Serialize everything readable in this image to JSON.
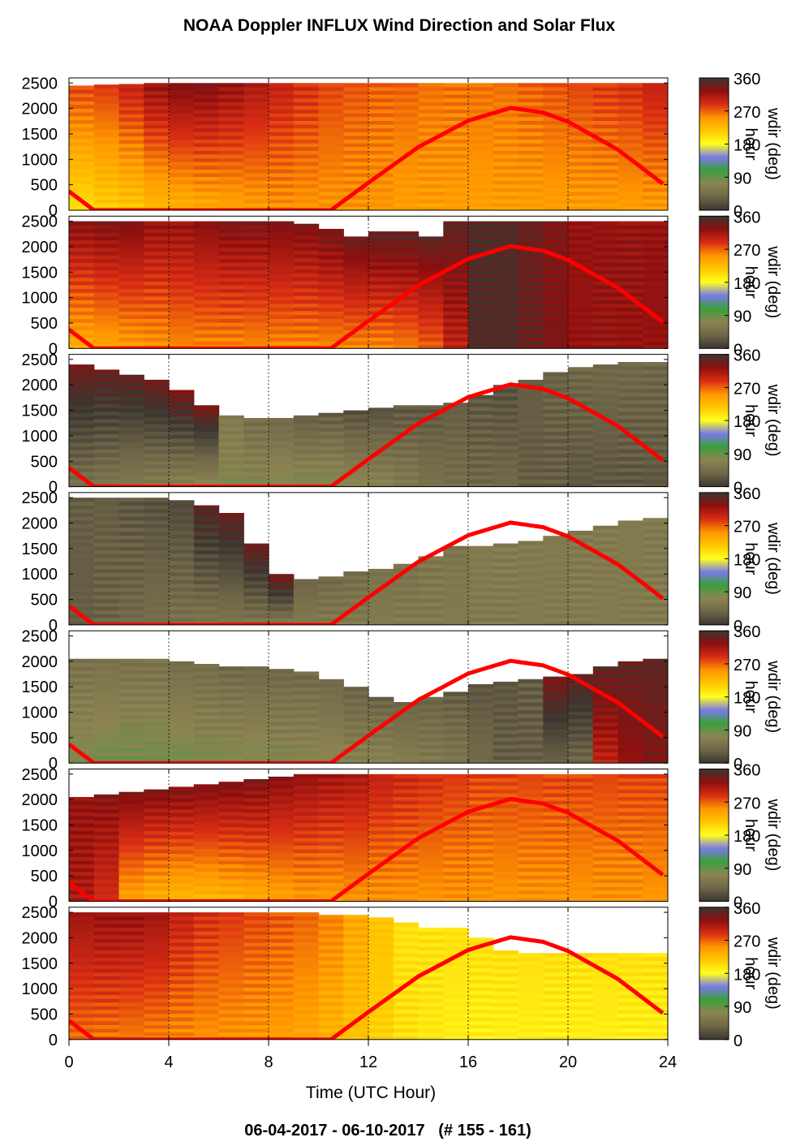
{
  "title": "NOAA Doppler INFLUX Wind Direction and Solar Flux",
  "footer": "06-04-2017 - 06-10-2017   (# 155 - 161)",
  "colors": {
    "solar_curve": "#ff0000",
    "colormap": [
      "#3b3630",
      "#6e6648",
      "#8c8452",
      "#3aa03a",
      "#7a7ae8",
      "#ffff1e",
      "#ffc800",
      "#ff9600",
      "#d92d14",
      "#8c0f0f",
      "#3b3630"
    ]
  },
  "chart_data": {
    "type": "heatmap",
    "variable": "wdir",
    "xlabel": "Time (UTC Hour)",
    "x_ticks": [
      "0",
      "4",
      "8",
      "12",
      "16",
      "20",
      "24"
    ],
    "xlim": [
      0,
      24
    ],
    "ylim": [
      0,
      2600
    ],
    "y_ticks": [
      "0",
      "500",
      "1000",
      "1500",
      "2000",
      "2500"
    ],
    "colorbar": {
      "label": "wdir (deg)",
      "ticks": [
        "0",
        "90",
        "180",
        "270",
        "360"
      ],
      "range": [
        0,
        360
      ]
    },
    "grid": "dotted vertical lines at 4-hour intervals",
    "solar_flux_curve": {
      "description": "red curve, flat near 0 during night, arching to about 2000 on the left axis scale",
      "points": [
        [
          0,
          370
        ],
        [
          1,
          0
        ],
        [
          10.5,
          0
        ],
        [
          12,
          540
        ],
        [
          14,
          1240
        ],
        [
          16,
          1760
        ],
        [
          17.7,
          2010
        ],
        [
          19,
          1920
        ],
        [
          20,
          1740
        ],
        [
          22,
          1190
        ],
        [
          23.8,
          520
        ]
      ]
    },
    "panels": [
      {
        "hour_label": "hour",
        "profile_top": [
          2450,
          2470,
          2480,
          2500,
          2500,
          2500,
          2500,
          2500,
          2500,
          2500,
          2500,
          2500,
          2500,
          2500,
          2500,
          2500,
          2500,
          2500,
          2500,
          2500,
          2500,
          2500,
          2500,
          2500
        ],
        "wdir_bottom": [
          200,
          210,
          215,
          225,
          230,
          235,
          240,
          245,
          250,
          250,
          250,
          250,
          250,
          245,
          245,
          245,
          245,
          245,
          245,
          245,
          245,
          245,
          245,
          245
        ],
        "wdir_top": [
          280,
          285,
          300,
          320,
          330,
          330,
          320,
          310,
          300,
          290,
          280,
          275,
          270,
          270,
          265,
          265,
          265,
          265,
          270,
          275,
          280,
          285,
          290,
          300
        ]
      },
      {
        "hour_label": "hour",
        "profile_top": [
          2500,
          2500,
          2500,
          2500,
          2500,
          2500,
          2500,
          2500,
          2500,
          2450,
          2350,
          2200,
          2300,
          2300,
          2200,
          2500,
          2500,
          2500,
          2500,
          2500,
          2500,
          2500,
          2500,
          2500
        ],
        "wdir_bottom": [
          235,
          240,
          245,
          250,
          255,
          255,
          255,
          255,
          255,
          255,
          255,
          255,
          255,
          260,
          270,
          300,
          350,
          350,
          340,
          330,
          320,
          320,
          320,
          320
        ],
        "wdir_top": [
          325,
          330,
          330,
          320,
          320,
          325,
          330,
          330,
          330,
          330,
          335,
          340,
          345,
          345,
          345,
          345,
          350,
          350,
          340,
          330,
          320,
          320,
          320,
          320
        ]
      },
      {
        "hour_label": "hour",
        "profile_top": [
          2400,
          2300,
          2200,
          2100,
          1900,
          1600,
          1400,
          1350,
          1350,
          1400,
          1450,
          1500,
          1550,
          1600,
          1600,
          1650,
          1800,
          2000,
          2100,
          2250,
          2350,
          2400,
          2450,
          2450
        ],
        "wdir_bottom": [
          50,
          55,
          60,
          65,
          70,
          75,
          75,
          75,
          80,
          80,
          80,
          75,
          70,
          60,
          50,
          45,
          40,
          40,
          30,
          30,
          25,
          25,
          25,
          25
        ],
        "wdir_top": [
          335,
          340,
          340,
          335,
          330,
          330,
          60,
          45,
          40,
          30,
          30,
          20,
          20,
          25,
          25,
          30,
          25,
          20,
          30,
          35,
          40,
          40,
          40,
          40
        ]
      },
      {
        "hour_label": "hour",
        "profile_top": [
          2500,
          2500,
          2500,
          2500,
          2450,
          2350,
          2200,
          1600,
          1000,
          900,
          950,
          1050,
          1100,
          1200,
          1350,
          1550,
          1550,
          1600,
          1650,
          1750,
          1850,
          1950,
          2050,
          2100
        ],
        "wdir_bottom": [
          30,
          35,
          40,
          45,
          50,
          55,
          55,
          55,
          60,
          60,
          60,
          60,
          60,
          60,
          60,
          60,
          60,
          60,
          60,
          60,
          60,
          60,
          60,
          60
        ],
        "wdir_top": [
          30,
          30,
          25,
          20,
          15,
          345,
          340,
          335,
          330,
          35,
          40,
          45,
          50,
          50,
          55,
          55,
          60,
          60,
          60,
          60,
          60,
          60,
          60,
          60
        ]
      },
      {
        "hour_label": "hour",
        "profile_top": [
          2050,
          2050,
          2050,
          2050,
          2000,
          1950,
          1900,
          1900,
          1850,
          1800,
          1650,
          1500,
          1300,
          1200,
          1300,
          1400,
          1550,
          1600,
          1650,
          1700,
          1750,
          1900,
          2000,
          2050
        ],
        "wdir_bottom": [
          80,
          85,
          85,
          85,
          85,
          80,
          80,
          80,
          75,
          75,
          75,
          70,
          70,
          65,
          60,
          55,
          40,
          30,
          30,
          35,
          40,
          300,
          320,
          330
        ],
        "wdir_top": [
          50,
          50,
          50,
          50,
          45,
          45,
          40,
          40,
          40,
          40,
          40,
          35,
          35,
          35,
          35,
          30,
          25,
          25,
          30,
          330,
          340,
          345,
          345,
          345
        ]
      },
      {
        "hour_label": "hour",
        "profile_top": [
          2050,
          2100,
          2150,
          2200,
          2250,
          2300,
          2350,
          2400,
          2450,
          2500,
          2500,
          2500,
          2500,
          2500,
          2500,
          2500,
          2500,
          2500,
          2500,
          2500,
          2500,
          2500,
          2500,
          2500
        ],
        "wdir_bottom": [
          310,
          290,
          240,
          230,
          225,
          225,
          230,
          235,
          240,
          245,
          245,
          250,
          250,
          250,
          250,
          250,
          250,
          250,
          250,
          250,
          250,
          250,
          250,
          250
        ],
        "wdir_top": [
          320,
          325,
          330,
          330,
          330,
          330,
          330,
          330,
          325,
          320,
          315,
          310,
          300,
          295,
          290,
          285,
          280,
          280,
          280,
          280,
          280,
          280,
          280,
          280
        ]
      },
      {
        "hour_label": "hour",
        "profile_top": [
          2500,
          2500,
          2500,
          2500,
          2500,
          2500,
          2500,
          2500,
          2500,
          2500,
          2450,
          2450,
          2400,
          2300,
          2200,
          2200,
          2000,
          1750,
          1700,
          1700,
          1700,
          1700,
          1700,
          1700
        ],
        "wdir_bottom": [
          265,
          262,
          260,
          258,
          255,
          252,
          250,
          248,
          245,
          240,
          230,
          220,
          210,
          200,
          195,
          190,
          190,
          190,
          190,
          190,
          190,
          190,
          190,
          190
        ],
        "wdir_top": [
          315,
          320,
          320,
          315,
          300,
          290,
          285,
          280,
          275,
          270,
          260,
          240,
          220,
          200,
          200,
          200,
          200,
          200,
          200,
          200,
          200,
          200,
          200,
          200
        ]
      }
    ]
  }
}
